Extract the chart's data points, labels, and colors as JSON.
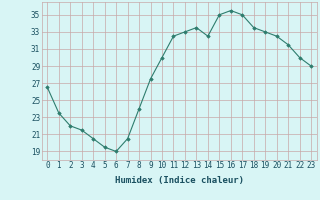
{
  "x": [
    0,
    1,
    2,
    3,
    4,
    5,
    6,
    7,
    8,
    9,
    10,
    11,
    12,
    13,
    14,
    15,
    16,
    17,
    18,
    19,
    20,
    21,
    22,
    23
  ],
  "y": [
    26.5,
    23.5,
    22.0,
    21.5,
    20.5,
    19.5,
    19.0,
    20.5,
    24.0,
    27.5,
    30.0,
    32.5,
    33.0,
    33.5,
    32.5,
    35.0,
    35.5,
    35.0,
    33.5,
    33.0,
    32.5,
    31.5,
    30.0,
    29.0
  ],
  "line_color": "#2e7d6e",
  "marker": "D",
  "marker_size": 1.8,
  "bg_color": "#d8f5f5",
  "grid_color": "#c8a8a8",
  "tick_label_color": "#1a5060",
  "xlabel": "Humidex (Indice chaleur)",
  "xlim": [
    -0.5,
    23.5
  ],
  "ylim": [
    18.0,
    36.5
  ],
  "yticks": [
    19,
    21,
    23,
    25,
    27,
    29,
    31,
    33,
    35
  ],
  "xtick_labels": [
    "0",
    "1",
    "2",
    "3",
    "4",
    "5",
    "6",
    "7",
    "8",
    "9",
    "10",
    "11",
    "12",
    "13",
    "14",
    "15",
    "16",
    "17",
    "18",
    "19",
    "20",
    "21",
    "22",
    "23"
  ],
  "xlabel_fontsize": 6.5,
  "tick_fontsize": 5.5,
  "linewidth": 0.8
}
